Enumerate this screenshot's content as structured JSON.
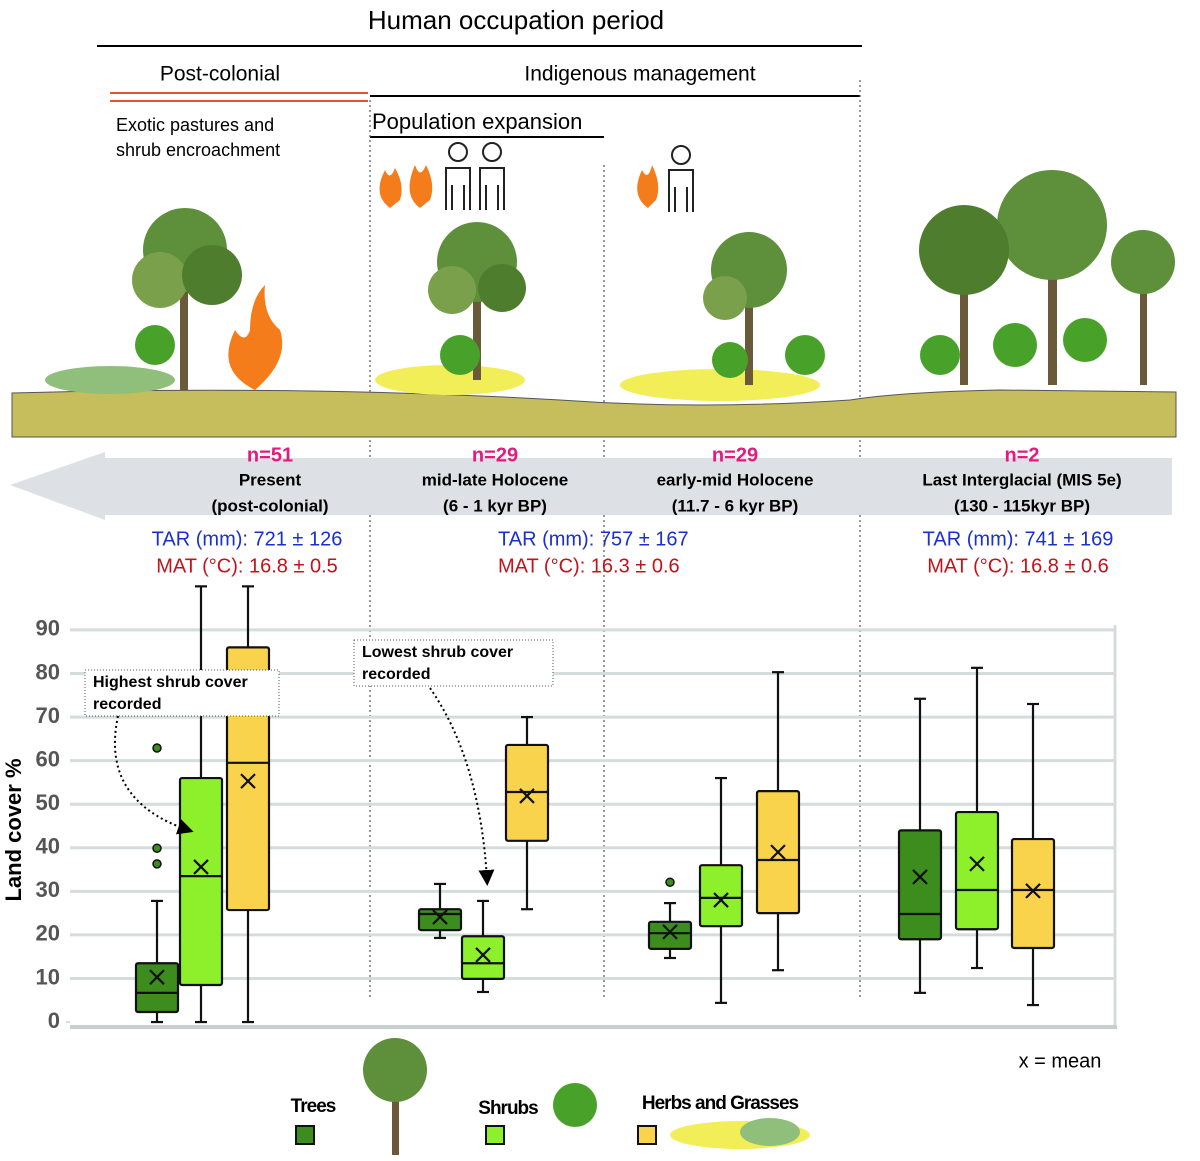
{
  "header": {
    "title": "Human occupation period",
    "post_colonial": "Post-colonial",
    "indigenous": "Indigenous management",
    "exotic": [
      "Exotic pastures and",
      "shrub encroachment"
    ],
    "population": "Population expansion"
  },
  "chart_data": {
    "type": "box",
    "ylabel": "Land cover %",
    "ylim": [
      -1,
      101
    ],
    "yticks": [
      0,
      10,
      20,
      30,
      40,
      50,
      60,
      70,
      80,
      90
    ],
    "grid": true,
    "periods": [
      {
        "n": "n=51",
        "name": [
          "Present",
          "(post-colonial)"
        ],
        "tar": "TAR (mm): 721 ± 126",
        "mat": "MAT (°C): 16.8 ± 0.5"
      },
      {
        "n": "n=29",
        "name": [
          "mid-late Holocene",
          "(6 - 1 kyr BP)"
        ],
        "tar": "TAR (mm): 757 ± 167",
        "mat": "MAT (°C): 16.3 ± 0.6"
      },
      {
        "n": "n=29",
        "name": [
          "early-mid Holocene",
          "(11.7 - 6 kyr BP)"
        ]
      },
      {
        "n": "n=2",
        "name": [
          "Last Interglacial (MIS 5e)",
          "(130 - 115kyr BP)"
        ],
        "tar": "TAR (mm): 741 ± 169",
        "mat": "MAT (°C): 16.8 ± 0.6"
      }
    ],
    "series": [
      {
        "name": "Trees",
        "color": "#3c8c1e",
        "boxes": [
          {
            "min": 0,
            "q1": 2.3,
            "median": 6.7,
            "q3": 13.5,
            "max": 27.8,
            "mean": 10.3,
            "outliers": [
              62.9,
              39.9,
              36.3
            ]
          },
          {
            "min": 19.3,
            "q1": 21.1,
            "median": 24.8,
            "q3": 25.9,
            "max": 31.7,
            "mean": 24.1,
            "outliers": []
          },
          {
            "min": 14.7,
            "q1": 16.8,
            "median": 20.4,
            "q3": 23,
            "max": 27.3,
            "mean": 20.7,
            "outliers": [
              32.1
            ]
          },
          {
            "min": 6.7,
            "q1": 19,
            "median": 24.8,
            "q3": 44,
            "max": 74.2,
            "mean": 33.3,
            "outliers": []
          }
        ]
      },
      {
        "name": "Shrubs",
        "color": "#8ef02a",
        "boxes": [
          {
            "min": 0,
            "q1": 8.5,
            "median": 33.5,
            "q3": 56,
            "max": 100,
            "mean": 35.6,
            "outliers": []
          },
          {
            "min": 6.9,
            "q1": 9.9,
            "median": 13.5,
            "q3": 19.7,
            "max": 27.8,
            "mean": 15.4,
            "outliers": []
          },
          {
            "min": 4.4,
            "q1": 22,
            "median": 28.5,
            "q3": 36,
            "max": 56,
            "mean": 28,
            "outliers": []
          },
          {
            "min": 12.4,
            "q1": 21.3,
            "median": 30.3,
            "q3": 48.2,
            "max": 81.3,
            "mean": 36.3,
            "outliers": []
          }
        ]
      },
      {
        "name": "Herbs and Grasses",
        "color": "#f9d34c",
        "boxes": [
          {
            "min": 0,
            "q1": 25.7,
            "median": 59.5,
            "q3": 86,
            "max": 100,
            "mean": 55.3,
            "outliers": []
          },
          {
            "min": 25.9,
            "q1": 41.6,
            "median": 52.8,
            "q3": 63.6,
            "max": 70,
            "mean": 51.9,
            "outliers": []
          },
          {
            "min": 11.9,
            "q1": 25,
            "median": 37.2,
            "q3": 53,
            "max": 80.3,
            "mean": 39,
            "outliers": []
          },
          {
            "min": 3.9,
            "q1": 17,
            "median": 30.3,
            "q3": 42,
            "max": 73,
            "mean": 30.1,
            "outliers": []
          }
        ]
      }
    ],
    "annotations": [
      [
        "Highest shrub cover",
        "recorded"
      ],
      [
        "Lowest shrub cover",
        "recorded"
      ]
    ],
    "mean_note": "x = mean"
  }
}
